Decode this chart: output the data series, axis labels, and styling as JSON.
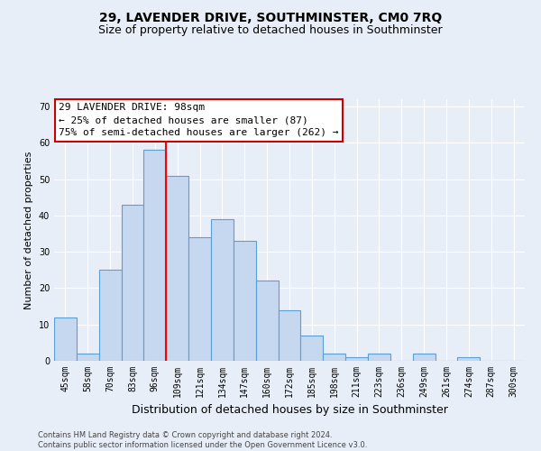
{
  "title": "29, LAVENDER DRIVE, SOUTHMINSTER, CM0 7RQ",
  "subtitle": "Size of property relative to detached houses in Southminster",
  "xlabel": "Distribution of detached houses by size in Southminster",
  "ylabel": "Number of detached properties",
  "footer_line1": "Contains HM Land Registry data © Crown copyright and database right 2024.",
  "footer_line2": "Contains public sector information licensed under the Open Government Licence v3.0.",
  "categories": [
    "45sqm",
    "58sqm",
    "70sqm",
    "83sqm",
    "96sqm",
    "109sqm",
    "121sqm",
    "134sqm",
    "147sqm",
    "160sqm",
    "172sqm",
    "185sqm",
    "198sqm",
    "211sqm",
    "223sqm",
    "236sqm",
    "249sqm",
    "261sqm",
    "274sqm",
    "287sqm",
    "300sqm"
  ],
  "values": [
    12,
    2,
    25,
    43,
    58,
    51,
    34,
    39,
    33,
    22,
    14,
    7,
    2,
    1,
    2,
    0,
    2,
    0,
    1,
    0,
    0
  ],
  "bar_color": "#c5d8f0",
  "bar_edge_color": "#5a9fd4",
  "red_line_x": 4.5,
  "annotation_text_line1": "29 LAVENDER DRIVE: 98sqm",
  "annotation_text_line2": "← 25% of detached houses are smaller (87)",
  "annotation_text_line3": "75% of semi-detached houses are larger (262) →",
  "annotation_box_facecolor": "#ffffff",
  "annotation_box_edgecolor": "#cc0000",
  "ylim": [
    0,
    72
  ],
  "yticks": [
    0,
    10,
    20,
    30,
    40,
    50,
    60,
    70
  ],
  "bg_color": "#e8eef7",
  "grid_color": "#ffffff",
  "title_fontsize": 10,
  "subtitle_fontsize": 9,
  "annotation_fontsize": 8,
  "ylabel_fontsize": 8,
  "xlabel_fontsize": 9,
  "tick_fontsize": 7,
  "footer_fontsize": 6
}
